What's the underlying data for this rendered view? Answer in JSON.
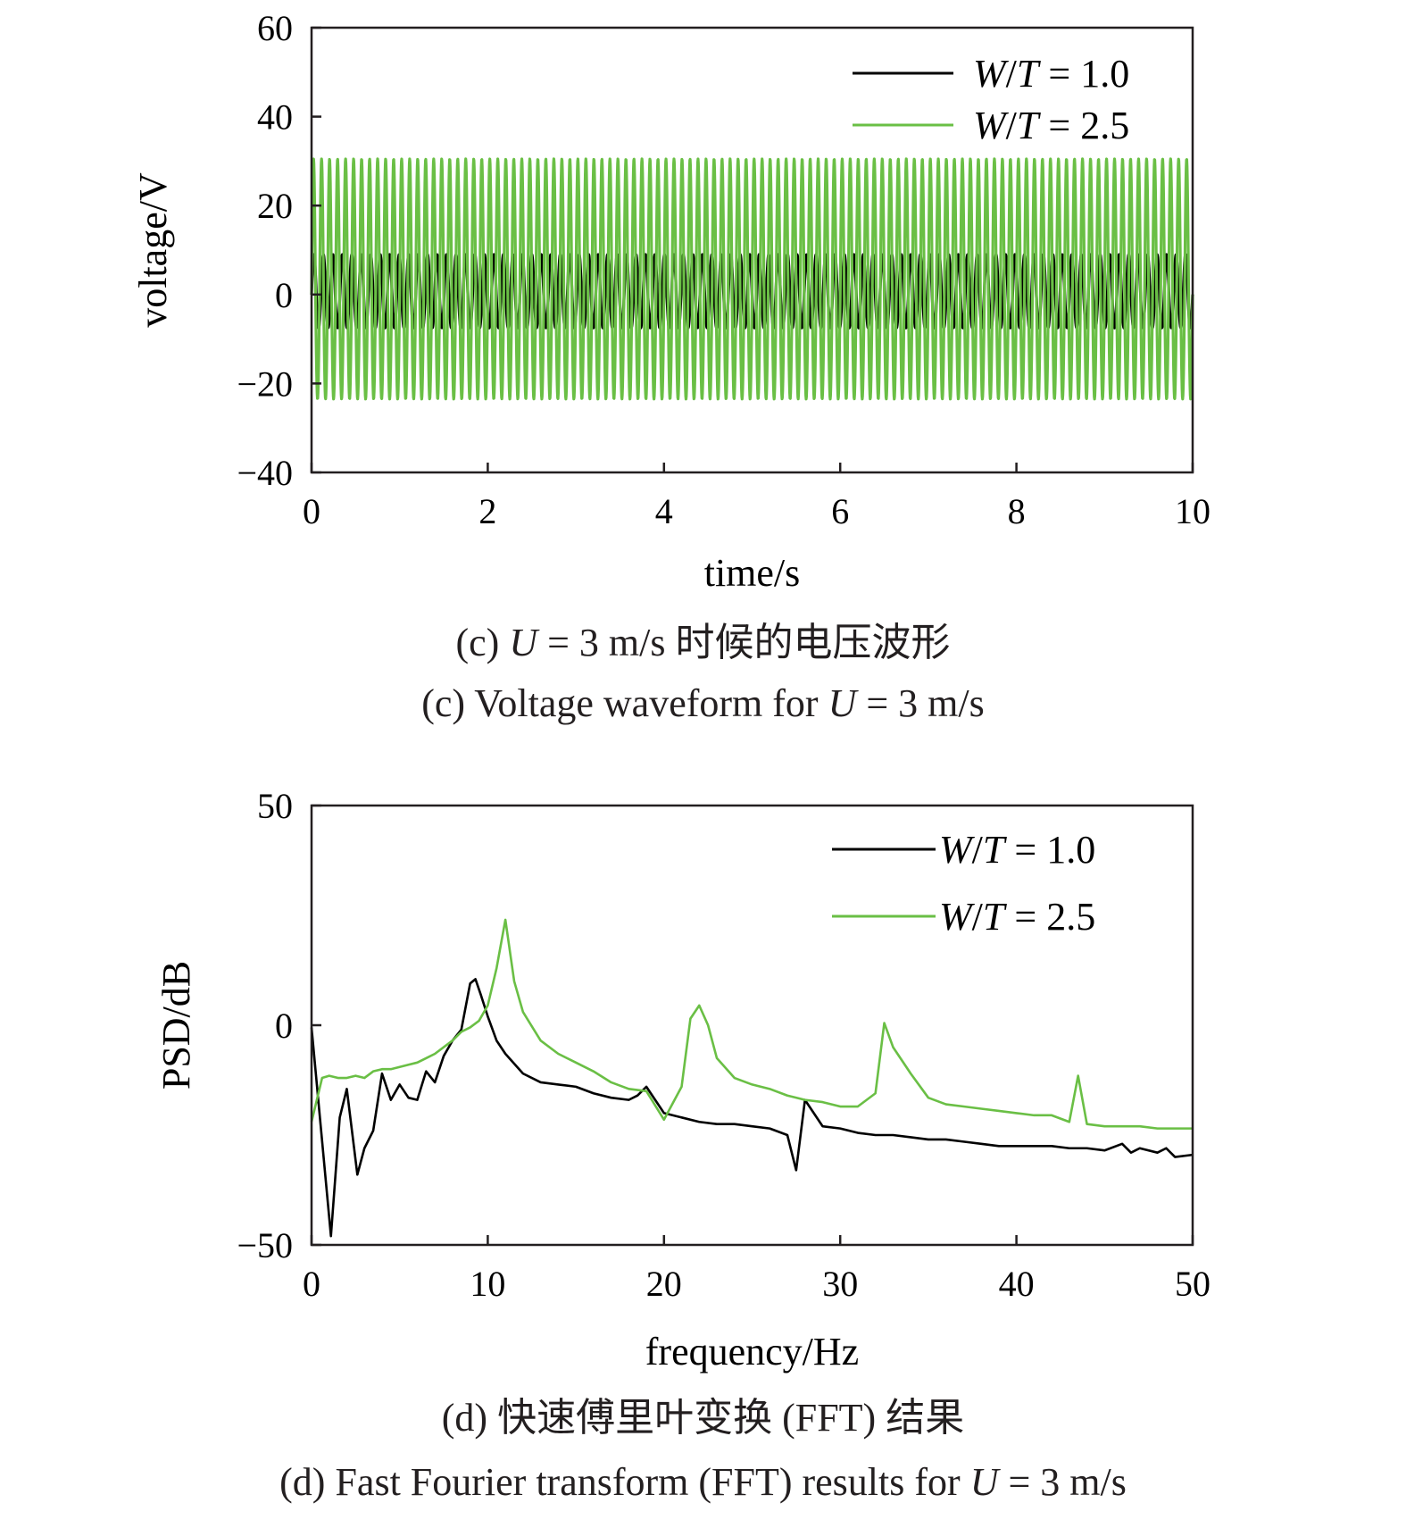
{
  "chart_data": [
    {
      "type": "line",
      "panel": "c",
      "xlabel": "time/s",
      "ylabel": "voltage/V",
      "xlim": [
        0,
        10
      ],
      "ylim": [
        -40,
        60
      ],
      "xticks": [
        "0",
        "2",
        "4",
        "6",
        "8",
        "10"
      ],
      "yticks": [
        "−40",
        "−20",
        "0",
        "20",
        "40",
        "60"
      ],
      "legend_position": "top-right",
      "grid": false,
      "series": [
        {
          "name": "W/T = 1.0",
          "name_parts": [
            "W",
            "/",
            "T",
            " = 1.0"
          ],
          "color": "#000000",
          "waveform": {
            "frequency_hz": 9.3,
            "amplitude_positive": 9,
            "amplitude_negative": -7.5
          }
        },
        {
          "name": "W/T = 2.5",
          "name_parts": [
            "W",
            "/",
            "T",
            " = 2.5"
          ],
          "color": "#6abf45",
          "waveform": {
            "frequency_hz": 11.0,
            "amplitude_positive": 30.5,
            "amplitude_negative": -23.5
          }
        }
      ],
      "caption_cn": {
        "prefix": "(c) ",
        "var": "U",
        "suffix": " = 3 m/s 时候的电压波形"
      },
      "caption_en": {
        "prefix": "(c) Voltage waveform for ",
        "var": "U",
        "suffix": " = 3 m/s"
      }
    },
    {
      "type": "line",
      "panel": "d",
      "xlabel": "frequency/Hz",
      "ylabel": "PSD/dB",
      "xlim": [
        0,
        50
      ],
      "ylim": [
        -50,
        50
      ],
      "xticks": [
        "0",
        "10",
        "20",
        "30",
        "40",
        "50"
      ],
      "yticks": [
        "−50",
        "0",
        "50"
      ],
      "legend_position": "top-right",
      "grid": false,
      "series": [
        {
          "name": "W/T = 1.0",
          "name_parts": [
            "W",
            "/",
            "T",
            " = 1.0"
          ],
          "color": "#000000",
          "x": [
            0,
            1.1,
            1.6,
            2.0,
            2.6,
            3.0,
            3.5,
            4.0,
            4.5,
            5.0,
            5.5,
            6.0,
            6.5,
            7.0,
            7.5,
            8.0,
            8.5,
            9.0,
            9.3,
            9.6,
            10.0,
            10.5,
            11.0,
            12.0,
            13.0,
            14.0,
            15.0,
            16.0,
            17.0,
            18.0,
            18.5,
            19.0,
            20.0,
            21.0,
            22.0,
            23.0,
            24.0,
            25.0,
            26.0,
            27.0,
            27.5,
            28.0,
            29.0,
            30.0,
            31.0,
            32.0,
            33.0,
            34.0,
            35.0,
            36.0,
            37.0,
            38.0,
            39.0,
            40.0,
            41.0,
            42.0,
            43.0,
            44.0,
            45.0,
            46.0,
            46.5,
            47.0,
            48.0,
            48.5,
            49.0,
            50.0
          ],
          "y": [
            -0.5,
            -48,
            -21,
            -14.5,
            -34,
            -28,
            -24,
            -11,
            -17,
            -13.5,
            -16.5,
            -17,
            -10.5,
            -13,
            -7,
            -3.5,
            -1,
            9.5,
            10.5,
            7,
            2,
            -3.5,
            -6.5,
            -11,
            -13,
            -13.5,
            -14,
            -15.5,
            -16.5,
            -17,
            -16,
            -14,
            -20,
            -21,
            -22,
            -22.5,
            -22.5,
            -23,
            -23.5,
            -25,
            -33,
            -17,
            -23,
            -23.5,
            -24.5,
            -25,
            -25,
            -25.5,
            -26,
            -26,
            -26.5,
            -27,
            -27.5,
            -27.5,
            -27.5,
            -27.5,
            -28,
            -28,
            -28.5,
            -27,
            -29,
            -28,
            -29,
            -28,
            -30,
            -29.5
          ]
        },
        {
          "name": "W/T = 2.5",
          "name_parts": [
            "W",
            "/",
            "T",
            " = 2.5"
          ],
          "color": "#6abf45",
          "x": [
            0,
            0.6,
            1.0,
            1.5,
            2.0,
            2.5,
            3.0,
            3.5,
            4.0,
            4.5,
            5.0,
            5.5,
            6.0,
            6.5,
            7.0,
            7.5,
            8.0,
            8.5,
            9.0,
            9.5,
            10.0,
            10.5,
            11.0,
            11.5,
            12.0,
            13.0,
            14.0,
            15.0,
            16.0,
            17.0,
            18.0,
            19.0,
            20.0,
            21.0,
            21.5,
            22.0,
            22.5,
            23.0,
            24.0,
            25.0,
            26.0,
            27.0,
            28.0,
            29.0,
            30.0,
            31.0,
            32.0,
            32.5,
            33.0,
            34.0,
            35.0,
            36.0,
            37.0,
            38.0,
            39.0,
            40.0,
            41.0,
            42.0,
            43.0,
            43.5,
            44.0,
            45.0,
            46.0,
            47.0,
            48.0,
            49.0,
            50.0
          ],
          "y": [
            -22,
            -12,
            -11.5,
            -12,
            -12,
            -11.5,
            -12,
            -10.5,
            -10,
            -10,
            -9.5,
            -9,
            -8.5,
            -7.5,
            -6.5,
            -5,
            -3.5,
            -1.5,
            -0.5,
            1,
            4.5,
            13,
            24,
            10,
            3,
            -3.5,
            -6.5,
            -8.5,
            -10.5,
            -13,
            -14.5,
            -15,
            -21.5,
            -14,
            1.5,
            4.5,
            0,
            -7.5,
            -12,
            -13.5,
            -14.5,
            -16,
            -17,
            -17.5,
            -18.5,
            -18.5,
            -15.5,
            0.5,
            -5,
            -11,
            -16.5,
            -18,
            -18.5,
            -19,
            -19.5,
            -20,
            -20.5,
            -20.5,
            -22,
            -11.5,
            -22.5,
            -23,
            -23,
            -23,
            -23.5,
            -23.5,
            -23.5
          ]
        }
      ],
      "caption_cn": {
        "prefix": "(d) 快速傅里叶变换 (FFT) 结果",
        "var": "",
        "suffix": ""
      },
      "caption_en": {
        "prefix": "(d) Fast Fourier transform (FFT) results for ",
        "var": "U",
        "suffix": " = 3 m/s"
      }
    }
  ]
}
